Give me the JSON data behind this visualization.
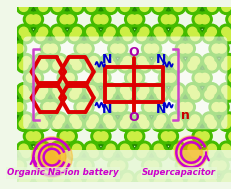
{
  "bg_color": "#f0f8e8",
  "text_left": "Organic Na-ion battery",
  "text_right": "Supercapacitor",
  "text_color": "#cc00cc",
  "n_label": "n",
  "n_color": "#cc0000",
  "N_color": "#0000cc",
  "O_color": "#aa00aa",
  "bond_color": "#dd0000",
  "node_dark": "#44bb00",
  "node_light": "#ccee44",
  "connector_color": "#228800",
  "bracket_color": "#cc44cc",
  "arrow_color": "#cc00cc",
  "glow_color": "#ffaa00",
  "figsize": [
    2.32,
    1.89
  ],
  "dpi": 100
}
